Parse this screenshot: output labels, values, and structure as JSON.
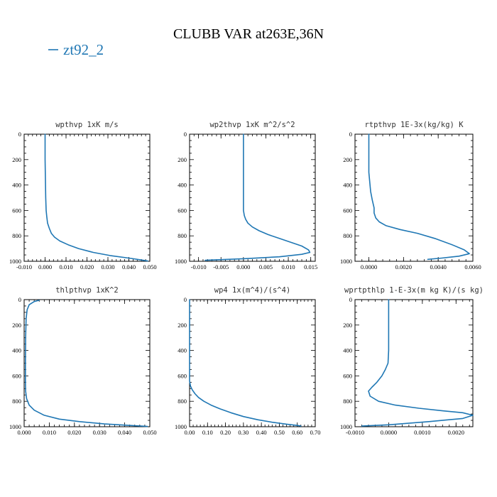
{
  "figure": {
    "title": "CLUBB VAR at263E,36N",
    "legend": "zt92_2",
    "line_color": "#1f77b4"
  },
  "chart_data": [
    {
      "type": "line",
      "title": "wpthvp   1xK  m/s",
      "xlim": [
        -0.01,
        0.05
      ],
      "xticks": [
        -0.01,
        0.0,
        0.01,
        0.02,
        0.03,
        0.04,
        0.05
      ],
      "xtick_labels": [
        "-0.010",
        "0.000",
        "0.010",
        "0.020",
        "0.030",
        "0.040",
        "0.050"
      ],
      "ylim": [
        1000,
        0
      ],
      "yticks": [
        0,
        200,
        400,
        600,
        800,
        1000
      ],
      "ytick_labels": [
        "0",
        "200",
        "400",
        "600",
        "800",
        "1000"
      ],
      "series": [
        {
          "name": "zt92_2",
          "x": [
            0.0,
            0.0,
            0.0002,
            0.0003,
            0.0005,
            0.0008,
            0.0012,
            0.002,
            0.003,
            0.0045,
            0.007,
            0.011,
            0.016,
            0.023,
            0.031,
            0.04,
            0.046,
            0.049
          ],
          "y": [
            0,
            200,
            400,
            500,
            600,
            650,
            700,
            740,
            780,
            810,
            840,
            870,
            900,
            930,
            955,
            975,
            990,
            998
          ]
        }
      ]
    },
    {
      "type": "line",
      "title": "wp2thvp   1xK  m^2/s^2",
      "xlim": [
        -0.012,
        0.016
      ],
      "xticks": [
        -0.01,
        -0.005,
        0.0,
        0.005,
        0.01,
        0.015
      ],
      "xtick_labels": [
        "-0.010",
        "-0.005",
        "0.000",
        "0.005",
        "0.010",
        "0.015"
      ],
      "ylim": [
        1000,
        0
      ],
      "yticks": [
        0,
        200,
        400,
        600,
        800,
        1000
      ],
      "ytick_labels": [
        "0",
        "200",
        "400",
        "600",
        "800",
        "1000"
      ],
      "series": [
        {
          "name": "zt92_2",
          "x": [
            0.0,
            0.0,
            0.0,
            0.0002,
            0.0005,
            0.001,
            0.002,
            0.0035,
            0.0055,
            0.008,
            0.0105,
            0.013,
            0.0145,
            0.0148,
            0.013,
            0.008,
            0.0,
            -0.006,
            -0.0085
          ],
          "y": [
            0,
            300,
            600,
            640,
            670,
            700,
            730,
            760,
            790,
            820,
            850,
            880,
            910,
            930,
            945,
            965,
            980,
            988,
            992
          ]
        }
      ]
    },
    {
      "type": "line",
      "title": "rtpthvp   1E-3x(kg/kg) K",
      "xlim": [
        -0.0008,
        0.006
      ],
      "xticks": [
        0.0,
        0.002,
        0.004,
        0.006
      ],
      "xtick_labels": [
        "0.0000",
        "0.0020",
        "0.0040",
        "0.0060"
      ],
      "ylim": [
        1000,
        0
      ],
      "yticks": [
        0,
        200,
        400,
        600,
        800,
        1000
      ],
      "ytick_labels": [
        "0",
        "200",
        "400",
        "600",
        "800",
        "1000"
      ],
      "series": [
        {
          "name": "zt92_2",
          "x": [
            0.0,
            0.0,
            0.0001,
            0.0002,
            0.0003,
            0.0003,
            0.0004,
            0.0006,
            0.001,
            0.0018,
            0.0028,
            0.0038,
            0.0048,
            0.0055,
            0.0058,
            0.0052,
            0.0042,
            0.0034
          ],
          "y": [
            0,
            300,
            450,
            520,
            580,
            620,
            660,
            690,
            720,
            750,
            780,
            820,
            870,
            910,
            940,
            960,
            975,
            985
          ]
        }
      ]
    },
    {
      "type": "line",
      "title": "thlpthvp   1xK^2",
      "xlim": [
        0.0,
        0.05
      ],
      "xticks": [
        0.0,
        0.01,
        0.02,
        0.03,
        0.04,
        0.05
      ],
      "xtick_labels": [
        "0.000",
        "0.010",
        "0.020",
        "0.030",
        "0.040",
        "0.050"
      ],
      "ylim": [
        1000,
        0
      ],
      "yticks": [
        0,
        200,
        400,
        600,
        800,
        1000
      ],
      "ytick_labels": [
        "0",
        "200",
        "400",
        "600",
        "800",
        "1000"
      ],
      "series": [
        {
          "name": "zt92_2",
          "x": [
            0.006,
            0.004,
            0.002,
            0.0012,
            0.0008,
            0.0006,
            0.0005,
            0.0005,
            0.0006,
            0.001,
            0.002,
            0.004,
            0.008,
            0.014,
            0.022,
            0.032,
            0.042,
            0.049
          ],
          "y": [
            5,
            15,
            40,
            80,
            150,
            300,
            500,
            650,
            720,
            780,
            830,
            870,
            910,
            940,
            960,
            978,
            990,
            998
          ]
        }
      ]
    },
    {
      "type": "line",
      "title": "wp4   1x(m^4)/(s^4)",
      "xlim": [
        0.0,
        0.7
      ],
      "xticks": [
        0.0,
        0.1,
        0.2,
        0.3,
        0.4,
        0.5,
        0.6,
        0.7
      ],
      "xtick_labels": [
        "0.00",
        "0.10",
        "0.20",
        "0.30",
        "0.40",
        "0.50",
        "0.60",
        "0.70"
      ],
      "ylim": [
        1000,
        0
      ],
      "yticks": [
        0,
        200,
        400,
        600,
        800,
        1000
      ],
      "ytick_labels": [
        "0",
        "200",
        "400",
        "600",
        "800",
        "1000"
      ],
      "series": [
        {
          "name": "zt92_2",
          "x": [
            0.0,
            0.0,
            0.005,
            0.015,
            0.03,
            0.05,
            0.08,
            0.12,
            0.17,
            0.23,
            0.3,
            0.38,
            0.46,
            0.54,
            0.6,
            0.62
          ],
          "y": [
            0,
            640,
            680,
            710,
            740,
            770,
            800,
            830,
            860,
            890,
            920,
            945,
            965,
            980,
            990,
            995
          ]
        }
      ]
    },
    {
      "type": "line",
      "title": "wprtpthlp   1-E-3x(m kg K)/(s kg)",
      "xlim": [
        -0.001,
        0.0025
      ],
      "xticks": [
        -0.001,
        0.0,
        0.001,
        0.002
      ],
      "xtick_labels": [
        "-0.0010",
        "0.0000",
        "0.0010",
        "0.0020"
      ],
      "ylim": [
        1000,
        0
      ],
      "yticks": [
        0,
        200,
        400,
        600,
        800,
        1000
      ],
      "ytick_labels": [
        "0",
        "200",
        "400",
        "600",
        "800",
        "1000"
      ],
      "series": [
        {
          "name": "zt92_2",
          "x": [
            0.0,
            0.0,
            -2e-05,
            -0.0001,
            -0.0002,
            -0.00035,
            -0.0005,
            -0.0006,
            -0.00055,
            -0.0003,
            0.0002,
            0.0009,
            0.0016,
            0.0022,
            0.0025,
            0.0022,
            0.0012,
            0.0,
            -0.0008
          ],
          "y": [
            0,
            400,
            500,
            550,
            600,
            650,
            690,
            720,
            760,
            800,
            830,
            855,
            875,
            890,
            910,
            935,
            960,
            985,
            995
          ]
        }
      ]
    }
  ]
}
